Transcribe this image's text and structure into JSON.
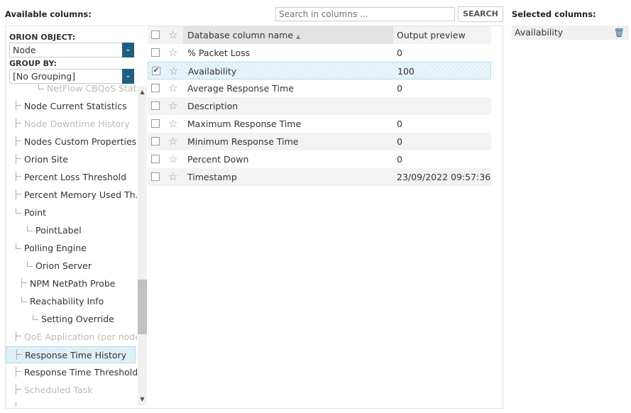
{
  "available_label": "Available columns:",
  "selected_label": "Selected columns:",
  "search": {
    "placeholder": "Search in columns ...",
    "button": "SEARCH"
  },
  "orion_object": {
    "label": "ORION OBJECT:",
    "value": "Node"
  },
  "group_by": {
    "label": "GROUP BY:",
    "value": "[No Grouping]"
  },
  "tree": [
    {
      "label": "NetFlow CBQoS Stats...",
      "indent": 3,
      "dim": true,
      "last": true
    },
    {
      "label": "Node Current Statistics",
      "indent": 1,
      "dim": false
    },
    {
      "label": "Node Downtime History",
      "indent": 1,
      "dim": true
    },
    {
      "label": "Nodes Custom Properties",
      "indent": 1,
      "dim": false
    },
    {
      "label": "Orion Site",
      "indent": 1,
      "dim": false
    },
    {
      "label": "Percent Loss Threshold",
      "indent": 1,
      "dim": false
    },
    {
      "label": "Percent Memory Used Th...",
      "indent": 1,
      "dim": false
    },
    {
      "label": "Point",
      "indent": 1,
      "dim": false,
      "last": true
    },
    {
      "label": "PointLabel",
      "indent": 2,
      "dim": false,
      "last": true
    },
    {
      "label": "Polling Engine",
      "indent": 1,
      "dim": false,
      "last": true
    },
    {
      "label": "Orion Server",
      "indent": 2,
      "dim": false,
      "last": true
    },
    {
      "label": "NPM NetPath Probe",
      "indent": 1.5,
      "dim": false
    },
    {
      "label": "Reachability Info",
      "indent": 1.5,
      "dim": false,
      "last": true
    },
    {
      "label": "Setting Override",
      "indent": 2.5,
      "dim": false,
      "last": true
    },
    {
      "label": "QoE Application (per node)",
      "indent": 1,
      "dim": true
    },
    {
      "label": "Response Time History",
      "indent": 1,
      "dim": false,
      "selected": true
    },
    {
      "label": "Response Time Threshold",
      "indent": 1,
      "dim": false
    },
    {
      "label": "Scheduled Task",
      "indent": 1,
      "dim": true
    },
    {
      "label": "",
      "indent": 1,
      "dim": false
    }
  ],
  "table": {
    "headers": {
      "name": "Database column name",
      "sort": "▲",
      "preview": "Output preview"
    },
    "rows": [
      {
        "name": "% Packet Loss",
        "preview": "0",
        "checked": false
      },
      {
        "name": "Availability",
        "preview": "100",
        "checked": true
      },
      {
        "name": "Average Response Time",
        "preview": "0",
        "checked": false
      },
      {
        "name": "Description",
        "preview": "",
        "checked": false
      },
      {
        "name": "Maximum Response Time",
        "preview": "0",
        "checked": false
      },
      {
        "name": "Minimum Response Time",
        "preview": "0",
        "checked": false
      },
      {
        "name": "Percent Down",
        "preview": "0",
        "checked": false
      },
      {
        "name": "Timestamp",
        "preview": "23/09/2022 09:57:36",
        "checked": false
      }
    ]
  },
  "selected_columns": [
    {
      "label": "Availability",
      "icon": "trash-icon"
    }
  ],
  "colors": {
    "accent": "#1f6080"
  }
}
